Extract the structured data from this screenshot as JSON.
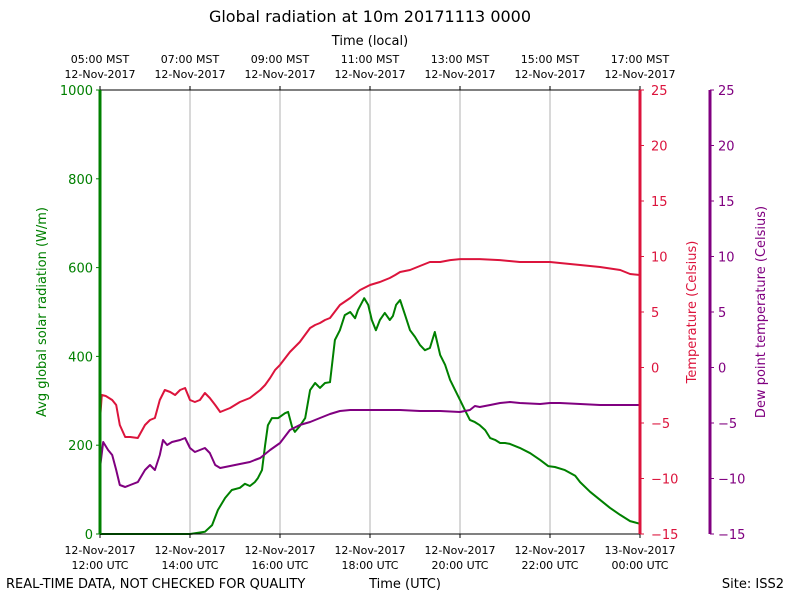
{
  "chart_data": {
    "type": "line",
    "title": "Global radiation at 10m 20171113 0000",
    "top_xlabel": "Time (local)",
    "xlabel": "Time (UTC)",
    "xlim_hours_since_start": [
      0,
      12
    ],
    "bottom_ticks": [
      {
        "h": 0,
        "line1": "12-Nov-2017",
        "line2": "12:00 UTC"
      },
      {
        "h": 2,
        "line1": "12-Nov-2017",
        "line2": "14:00 UTC"
      },
      {
        "h": 4,
        "line1": "12-Nov-2017",
        "line2": "16:00 UTC"
      },
      {
        "h": 6,
        "line1": "12-Nov-2017",
        "line2": "18:00 UTC"
      },
      {
        "h": 8,
        "line1": "12-Nov-2017",
        "line2": "20:00 UTC"
      },
      {
        "h": 10,
        "line1": "12-Nov-2017",
        "line2": "22:00 UTC"
      },
      {
        "h": 12,
        "line1": "13-Nov-2017",
        "line2": "00:00 UTC"
      }
    ],
    "top_ticks": [
      {
        "h": 0,
        "line1": "05:00 MST",
        "line2": "12-Nov-2017"
      },
      {
        "h": 2,
        "line1": "07:00 MST",
        "line2": "12-Nov-2017"
      },
      {
        "h": 4,
        "line1": "09:00 MST",
        "line2": "12-Nov-2017"
      },
      {
        "h": 6,
        "line1": "11:00 MST",
        "line2": "12-Nov-2017"
      },
      {
        "h": 8,
        "line1": "13:00 MST",
        "line2": "12-Nov-2017"
      },
      {
        "h": 10,
        "line1": "15:00 MST",
        "line2": "12-Nov-2017"
      },
      {
        "h": 12,
        "line1": "17:00 MST",
        "line2": "12-Nov-2017"
      }
    ],
    "grid": "vertical",
    "axes": {
      "left": {
        "label": "Avg global solar radiation (W/m)",
        "ylim": [
          0,
          1000
        ],
        "ticks": [
          0,
          200,
          400,
          600,
          800,
          1000
        ],
        "color": "#008000"
      },
      "right": {
        "label": "Temperature (Celsius)",
        "ylim": [
          -15,
          25
        ],
        "ticks": [
          -15,
          -10,
          -5,
          0,
          5,
          10,
          15,
          20,
          25
        ],
        "color": "#dc143c"
      },
      "right2": {
        "label": "Dew point temperature (Celsius)",
        "ylim": [
          -15,
          25
        ],
        "ticks": [
          -15,
          -10,
          -5,
          0,
          5,
          10,
          15,
          20,
          25
        ],
        "color": "#800080"
      }
    },
    "series": [
      {
        "name": "Solar radiation",
        "axis": "left",
        "color": "#008000",
        "points": [
          [
            0,
            0
          ],
          [
            2,
            0
          ],
          [
            2.33,
            5
          ],
          [
            2.49,
            20
          ],
          [
            2.62,
            54
          ],
          [
            2.78,
            81
          ],
          [
            2.93,
            99
          ],
          [
            3.11,
            104
          ],
          [
            3.22,
            113
          ],
          [
            3.33,
            108
          ],
          [
            3.44,
            117
          ],
          [
            3.51,
            126
          ],
          [
            3.6,
            144
          ],
          [
            3.67,
            200
          ],
          [
            3.73,
            245
          ],
          [
            3.82,
            261
          ],
          [
            3.96,
            261
          ],
          [
            4.11,
            272
          ],
          [
            4.18,
            275
          ],
          [
            4.27,
            241
          ],
          [
            4.33,
            230
          ],
          [
            4.44,
            243
          ],
          [
            4.56,
            261
          ],
          [
            4.67,
            324
          ],
          [
            4.78,
            340
          ],
          [
            4.89,
            329
          ],
          [
            5,
            340
          ],
          [
            5.11,
            342
          ],
          [
            5.22,
            437
          ],
          [
            5.33,
            459
          ],
          [
            5.44,
            493
          ],
          [
            5.56,
            500
          ],
          [
            5.67,
            486
          ],
          [
            5.73,
            504
          ],
          [
            5.87,
            531
          ],
          [
            5.96,
            516
          ],
          [
            6.04,
            482
          ],
          [
            6.13,
            459
          ],
          [
            6.22,
            482
          ],
          [
            6.33,
            498
          ],
          [
            6.44,
            482
          ],
          [
            6.51,
            491
          ],
          [
            6.58,
            516
          ],
          [
            6.67,
            527
          ],
          [
            6.78,
            493
          ],
          [
            6.89,
            459
          ],
          [
            7,
            444
          ],
          [
            7.11,
            426
          ],
          [
            7.22,
            414
          ],
          [
            7.33,
            419
          ],
          [
            7.44,
            455
          ],
          [
            7.56,
            403
          ],
          [
            7.67,
            381
          ],
          [
            7.78,
            347
          ],
          [
            7.89,
            324
          ],
          [
            8,
            302
          ],
          [
            8.11,
            279
          ],
          [
            8.22,
            257
          ],
          [
            8.33,
            252
          ],
          [
            8.44,
            245
          ],
          [
            8.56,
            234
          ],
          [
            8.67,
            216
          ],
          [
            8.78,
            212
          ],
          [
            8.89,
            205
          ],
          [
            9,
            205
          ],
          [
            9.11,
            203
          ],
          [
            9.33,
            194
          ],
          [
            9.56,
            182
          ],
          [
            9.78,
            167
          ],
          [
            9.96,
            153
          ],
          [
            10.11,
            151
          ],
          [
            10.33,
            144
          ],
          [
            10.56,
            131
          ],
          [
            10.67,
            117
          ],
          [
            10.89,
            95
          ],
          [
            11.11,
            77
          ],
          [
            11.33,
            59
          ],
          [
            11.56,
            43
          ],
          [
            11.78,
            29
          ],
          [
            12,
            23
          ]
        ]
      },
      {
        "name": "Temperature",
        "axis": "right",
        "color": "#dc143c",
        "points": [
          [
            0,
            -4.73
          ],
          [
            0.04,
            -2.48
          ],
          [
            0.13,
            -2.57
          ],
          [
            0.27,
            -2.93
          ],
          [
            0.36,
            -3.38
          ],
          [
            0.44,
            -5.18
          ],
          [
            0.56,
            -6.26
          ],
          [
            0.67,
            -6.26
          ],
          [
            0.84,
            -6.35
          ],
          [
            1,
            -5.18
          ],
          [
            1.11,
            -4.73
          ],
          [
            1.22,
            -4.55
          ],
          [
            1.33,
            -2.93
          ],
          [
            1.44,
            -2.03
          ],
          [
            1.56,
            -2.21
          ],
          [
            1.67,
            -2.48
          ],
          [
            1.78,
            -2.03
          ],
          [
            1.89,
            -1.85
          ],
          [
            2,
            -2.93
          ],
          [
            2.11,
            -3.11
          ],
          [
            2.22,
            -2.93
          ],
          [
            2.33,
            -2.3
          ],
          [
            2.44,
            -2.75
          ],
          [
            2.56,
            -3.38
          ],
          [
            2.67,
            -4.01
          ],
          [
            2.78,
            -3.83
          ],
          [
            2.89,
            -3.65
          ],
          [
            3.11,
            -3.11
          ],
          [
            3.33,
            -2.75
          ],
          [
            3.56,
            -2.03
          ],
          [
            3.67,
            -1.58
          ],
          [
            3.78,
            -0.95
          ],
          [
            3.89,
            -0.23
          ],
          [
            4,
            0.23
          ],
          [
            4.22,
            1.4
          ],
          [
            4.44,
            2.3
          ],
          [
            4.67,
            3.56
          ],
          [
            4.78,
            3.83
          ],
          [
            4.89,
            4.01
          ],
          [
            5,
            4.28
          ],
          [
            5.11,
            4.46
          ],
          [
            5.33,
            5.63
          ],
          [
            5.56,
            6.26
          ],
          [
            5.78,
            6.98
          ],
          [
            6,
            7.43
          ],
          [
            6.22,
            7.7
          ],
          [
            6.44,
            8.06
          ],
          [
            6.56,
            8.33
          ],
          [
            6.67,
            8.6
          ],
          [
            6.89,
            8.78
          ],
          [
            7.11,
            9.14
          ],
          [
            7.33,
            9.5
          ],
          [
            7.56,
            9.5
          ],
          [
            7.78,
            9.68
          ],
          [
            8,
            9.77
          ],
          [
            8.44,
            9.77
          ],
          [
            8.89,
            9.68
          ],
          [
            9.33,
            9.5
          ],
          [
            9.78,
            9.5
          ],
          [
            10,
            9.5
          ],
          [
            10.22,
            9.41
          ],
          [
            10.67,
            9.23
          ],
          [
            11.11,
            9.05
          ],
          [
            11.56,
            8.78
          ],
          [
            11.78,
            8.42
          ],
          [
            12,
            8.33
          ]
        ]
      },
      {
        "name": "Dew point",
        "axis": "right2",
        "color": "#800080",
        "points": [
          [
            0,
            -9.05
          ],
          [
            0.07,
            -6.71
          ],
          [
            0.18,
            -7.43
          ],
          [
            0.27,
            -7.88
          ],
          [
            0.36,
            -9.23
          ],
          [
            0.44,
            -10.59
          ],
          [
            0.56,
            -10.77
          ],
          [
            0.67,
            -10.59
          ],
          [
            0.84,
            -10.32
          ],
          [
            1,
            -9.23
          ],
          [
            1.11,
            -8.78
          ],
          [
            1.22,
            -9.23
          ],
          [
            1.33,
            -7.88
          ],
          [
            1.4,
            -6.53
          ],
          [
            1.49,
            -6.98
          ],
          [
            1.6,
            -6.71
          ],
          [
            1.78,
            -6.53
          ],
          [
            1.89,
            -6.35
          ],
          [
            2,
            -7.25
          ],
          [
            2.11,
            -7.61
          ],
          [
            2.22,
            -7.43
          ],
          [
            2.33,
            -7.25
          ],
          [
            2.44,
            -7.7
          ],
          [
            2.56,
            -8.78
          ],
          [
            2.67,
            -9.05
          ],
          [
            2.89,
            -8.87
          ],
          [
            3.11,
            -8.69
          ],
          [
            3.33,
            -8.51
          ],
          [
            3.44,
            -8.33
          ],
          [
            3.56,
            -8.15
          ],
          [
            3.78,
            -7.43
          ],
          [
            4,
            -6.8
          ],
          [
            4.22,
            -5.63
          ],
          [
            4.44,
            -5.18
          ],
          [
            4.67,
            -4.91
          ],
          [
            4.89,
            -4.55
          ],
          [
            5.11,
            -4.19
          ],
          [
            5.33,
            -3.92
          ],
          [
            5.56,
            -3.83
          ],
          [
            6,
            -3.83
          ],
          [
            6.67,
            -3.83
          ],
          [
            7.11,
            -3.92
          ],
          [
            7.56,
            -3.92
          ],
          [
            8,
            -4.01
          ],
          [
            8.22,
            -3.83
          ],
          [
            8.33,
            -3.47
          ],
          [
            8.44,
            -3.56
          ],
          [
            8.67,
            -3.38
          ],
          [
            8.89,
            -3.2
          ],
          [
            9.11,
            -3.11
          ],
          [
            9.33,
            -3.2
          ],
          [
            9.78,
            -3.29
          ],
          [
            10,
            -3.2
          ],
          [
            10.22,
            -3.2
          ],
          [
            10.67,
            -3.29
          ],
          [
            11.11,
            -3.38
          ],
          [
            11.56,
            -3.38
          ],
          [
            12,
            -3.38
          ]
        ]
      }
    ]
  },
  "footer": {
    "disclaimer": "REAL-TIME DATA, NOT CHECKED FOR QUALITY",
    "site": "Site: ISS2"
  }
}
